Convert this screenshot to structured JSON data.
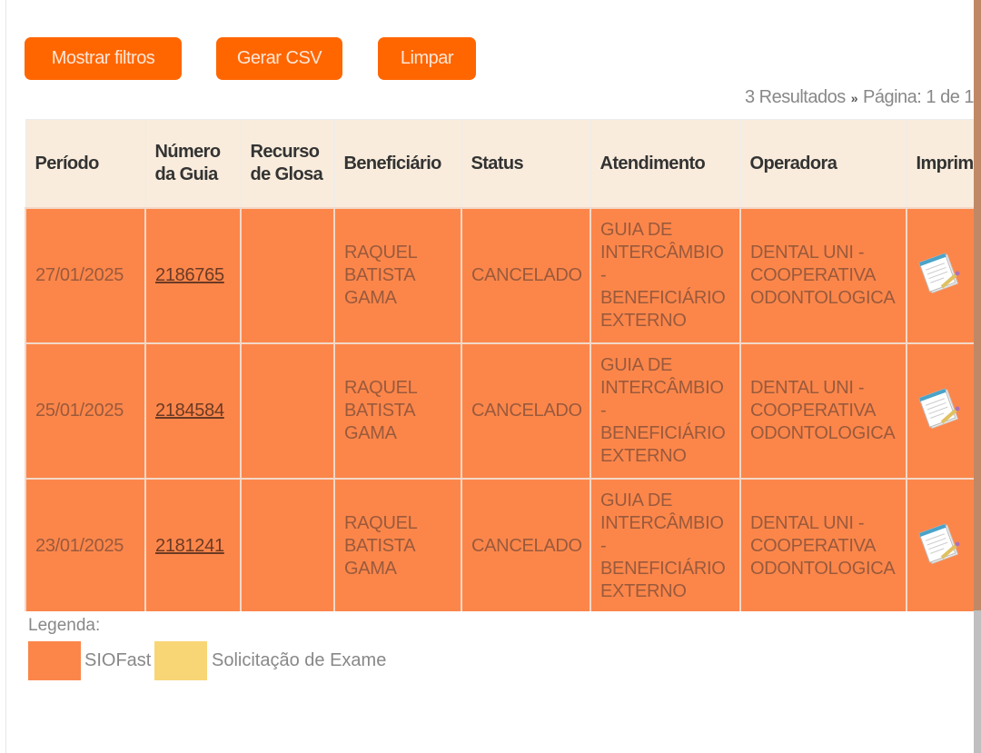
{
  "toolbar": {
    "show_filters": "Mostrar filtros",
    "csv": "Gerar CSV",
    "clear": "Limpar"
  },
  "pager": {
    "results": "3 Resultados",
    "page": "Página: 1 de 1"
  },
  "table": {
    "headers": [
      "Período",
      "Número da Guia",
      "Recurso de Glosa",
      "Beneficiário",
      "Status",
      "Atendimento",
      "Operadora",
      "Imprimir"
    ],
    "rows": [
      {
        "periodo": "27/01/2025",
        "guia": "2186765",
        "recurso": "",
        "beneficiario": "RAQUEL BATISTA GAMA",
        "status": "CANCELADO",
        "atendimento": "GUIA DE INTERCÂMBIO - BENEFICIÁRIO EXTERNO",
        "operadora": "DENTAL UNI - COOPERATIVA ODONTOLOGICA"
      },
      {
        "periodo": "25/01/2025",
        "guia": "2184584",
        "recurso": "",
        "beneficiario": "RAQUEL BATISTA GAMA",
        "status": "CANCELADO",
        "atendimento": "GUIA DE INTERCÂMBIO - BENEFICIÁRIO EXTERNO",
        "operadora": "DENTAL UNI - COOPERATIVA ODONTOLOGICA"
      },
      {
        "periodo": "23/01/2025",
        "guia": "2181241",
        "recurso": "",
        "beneficiario": "RAQUEL BATISTA GAMA",
        "status": "CANCELADO",
        "atendimento": "GUIA DE INTERCÂMBIO - BENEFICIÁRIO EXTERNO",
        "operadora": "DENTAL UNI - COOPERATIVA ODONTOLOGICA"
      }
    ]
  },
  "legend": {
    "title": "Legenda:",
    "items": [
      {
        "label": "SIOFast",
        "color": "#fc864a"
      },
      {
        "label": "Solicitação de Exame",
        "color": "#f8d675"
      }
    ]
  }
}
